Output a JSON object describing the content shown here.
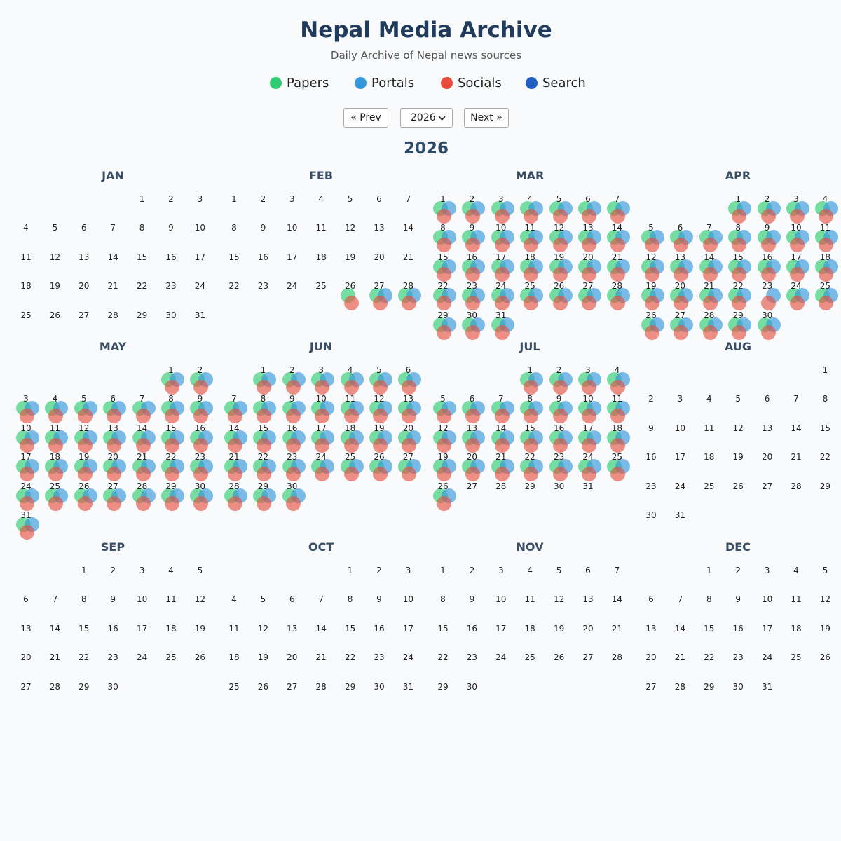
{
  "header": {
    "title": "Nepal Media Archive",
    "subtitle": "Daily Archive of Nepal news sources"
  },
  "legend": [
    {
      "label": "Papers",
      "color": "#2ecc71"
    },
    {
      "label": "Portals",
      "color": "#3498db"
    },
    {
      "label": "Socials",
      "color": "#e74c3c"
    },
    {
      "label": "Search",
      "color": "#1f5fbf"
    }
  ],
  "nav": {
    "prev_label": "« Prev",
    "next_label": "Next »",
    "year_value": "2026"
  },
  "calendar": {
    "year": "2026",
    "months": [
      {
        "name": "JAN",
        "days": 31,
        "start_weekday": 4,
        "archive": {}
      },
      {
        "name": "FEB",
        "days": 28,
        "start_weekday": 0,
        "archive": {
          "26": "ps",
          "27": "pts",
          "28": "pts"
        }
      },
      {
        "name": "MAR",
        "days": 31,
        "start_weekday": 0,
        "archive": {
          "all": "pts"
        }
      },
      {
        "name": "APR",
        "days": 30,
        "start_weekday": 3,
        "archive": {
          "all": "pts",
          "23": "ts"
        }
      },
      {
        "name": "MAY",
        "days": 31,
        "start_weekday": 5,
        "archive": {
          "all": "pts"
        }
      },
      {
        "name": "JUN",
        "days": 30,
        "start_weekday": 1,
        "archive": {
          "all": "pts"
        }
      },
      {
        "name": "JUL",
        "days": 31,
        "start_weekday": 3,
        "archive": {
          "1-26": "pts"
        }
      },
      {
        "name": "AUG",
        "days": 31,
        "start_weekday": 6,
        "archive": {}
      },
      {
        "name": "SEP",
        "days": 30,
        "start_weekday": 2,
        "archive": {}
      },
      {
        "name": "OCT",
        "days": 31,
        "start_weekday": 4,
        "archive": {}
      },
      {
        "name": "NOV",
        "days": 30,
        "start_weekday": 0,
        "archive": {}
      },
      {
        "name": "DEC",
        "days": 31,
        "start_weekday": 2,
        "archive": {}
      }
    ]
  }
}
